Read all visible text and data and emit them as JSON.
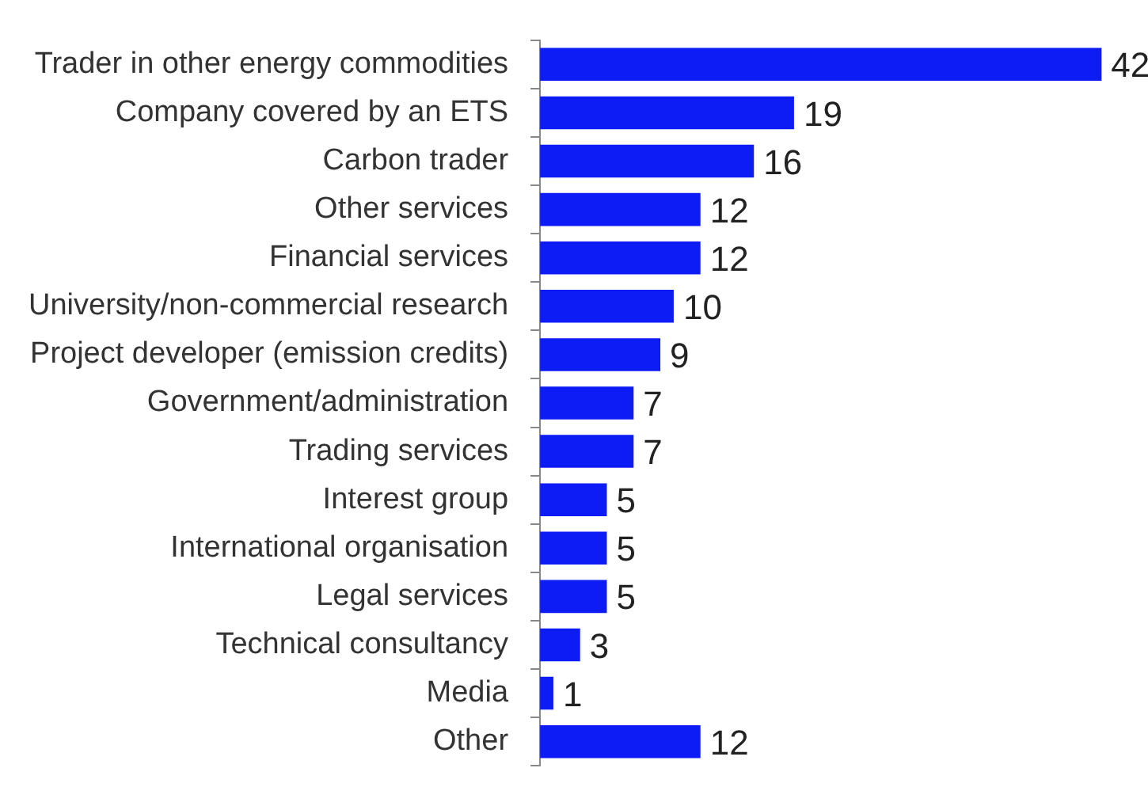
{
  "chart_data": {
    "type": "bar",
    "orientation": "horizontal",
    "categories": [
      "Trader in other energy commodities",
      "Company covered by an ETS",
      "Carbon trader",
      "Other services",
      "Financial services",
      "University/non-commercial research",
      "Project developer (emission credits)",
      "Government/administration",
      "Trading services",
      "Interest group",
      "International organisation",
      "Legal services",
      "Technical consultancy",
      "Media",
      "Other"
    ],
    "values": [
      42,
      19,
      16,
      12,
      12,
      10,
      9,
      7,
      7,
      5,
      5,
      5,
      3,
      1,
      12
    ],
    "color": "#0d1cf5",
    "data_labels": true,
    "legend": false
  }
}
